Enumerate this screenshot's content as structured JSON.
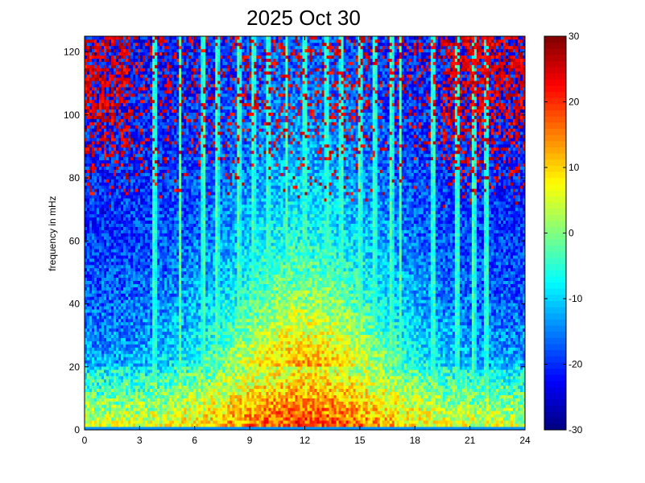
{
  "chart_data": {
    "type": "heatmap",
    "title": "2025 Oct 30",
    "xlabel": "",
    "ylabel": "frequency in mHz",
    "xlim": [
      0,
      24
    ],
    "ylim": [
      0,
      125
    ],
    "x_ticks": [
      0,
      3,
      6,
      9,
      12,
      15,
      18,
      21,
      24
    ],
    "y_ticks": [
      0,
      20,
      40,
      60,
      80,
      100,
      120
    ],
    "colorbar": {
      "range": [
        -30,
        30
      ],
      "ticks": [
        -30,
        -20,
        -10,
        0,
        10,
        20,
        30
      ],
      "colormap": "jet"
    },
    "grid": false,
    "dominant_features": {
      "low_frequency_band_mHz": [
        0,
        20
      ],
      "low_frequency_band_level": 15,
      "peak_level_time_hours": 12,
      "quiet_background_level": -22,
      "high_frequency_upper_band_mHz": [
        95,
        125
      ],
      "high_frequency_upper_band_level": 28,
      "vertical_streak_times_hours": [
        3.8,
        5.2,
        6.5,
        7.2,
        8.4,
        9.2,
        10.0,
        11.0,
        12.0,
        13.2,
        14.0,
        15.0,
        15.8,
        16.7,
        17.2,
        19.0,
        20.3,
        21.2,
        21.9
      ]
    }
  },
  "colors": {
    "background": "#ffffff",
    "axis": "#000000"
  }
}
